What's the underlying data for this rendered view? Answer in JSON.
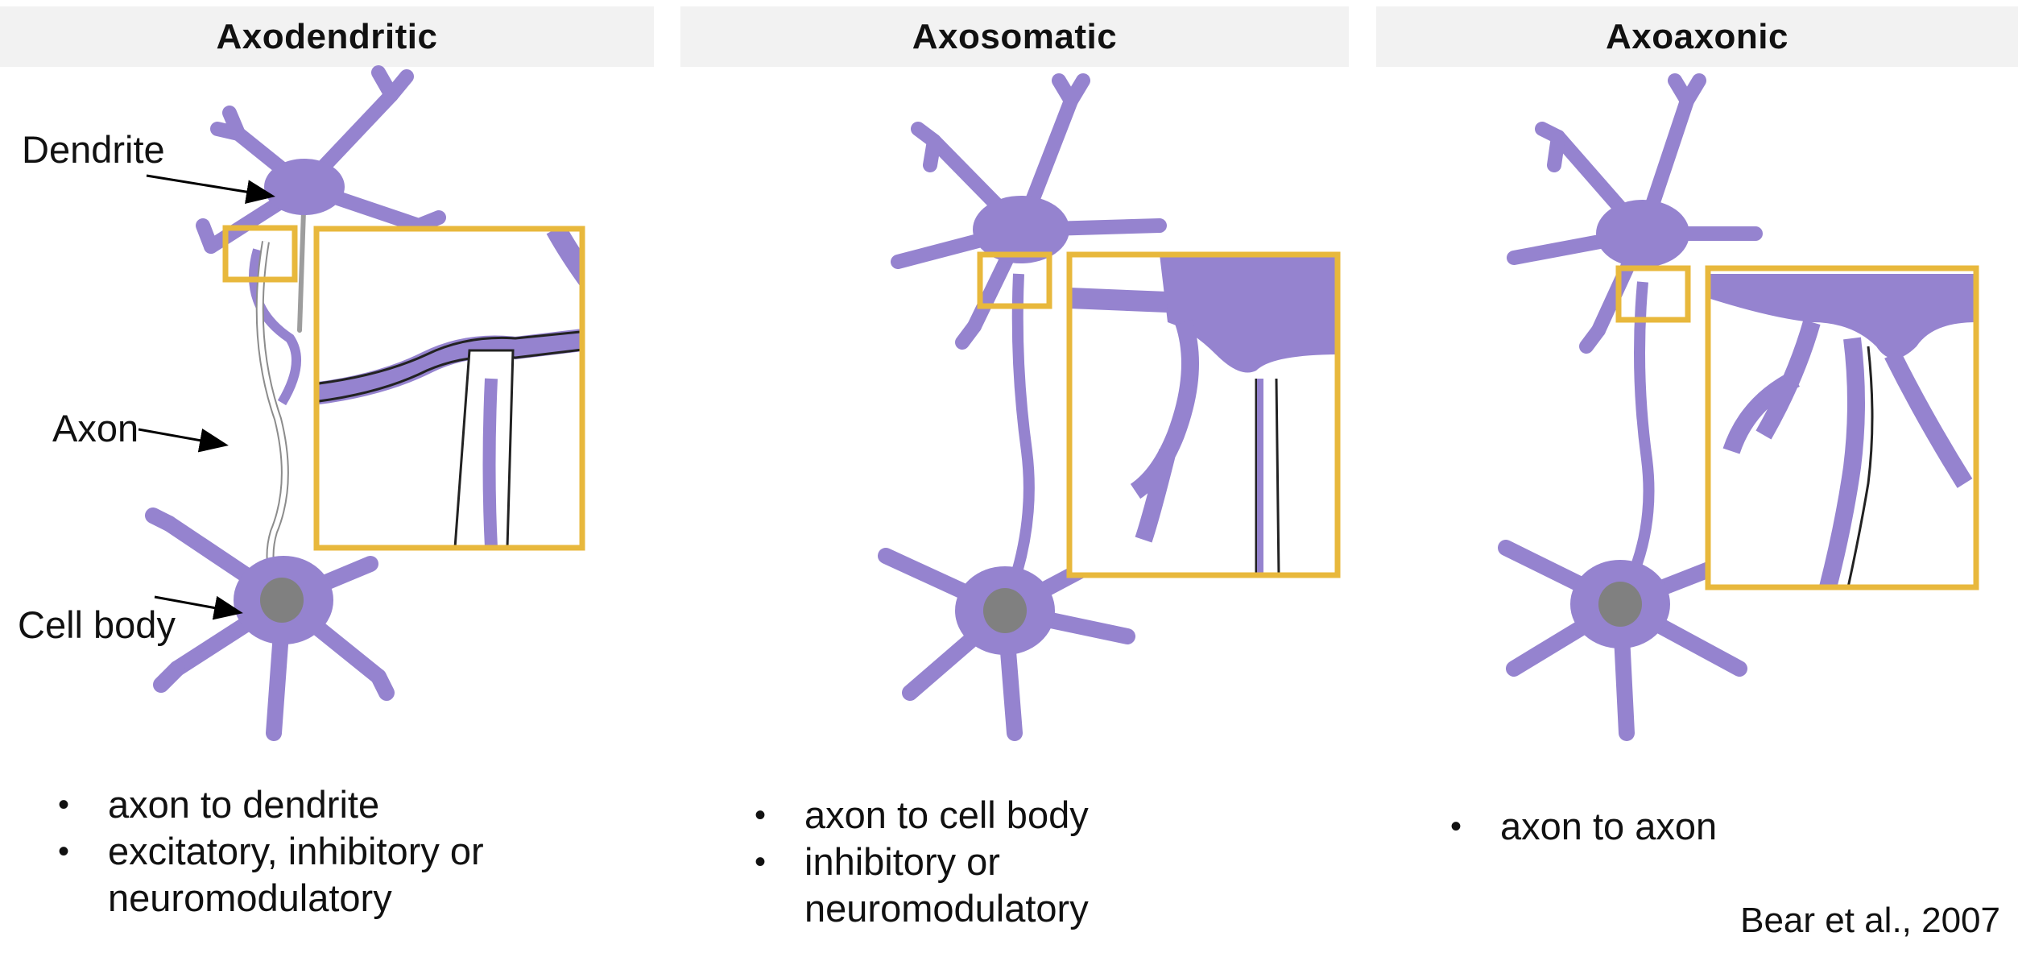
{
  "panels": [
    {
      "title": "Axodendritic",
      "bullets": [
        "axon to dendrite",
        "excitatory, inhibitory or neuromodulatory"
      ]
    },
    {
      "title": "Axosomatic",
      "bullets": [
        "axon to cell body",
        "inhibitory or neuromodulatory"
      ]
    },
    {
      "title": "Axoaxonic",
      "bullets": [
        "axon to axon"
      ]
    }
  ],
  "labels": {
    "dendrite": "Dendrite",
    "axon": "Axon",
    "cell_body": "Cell body"
  },
  "citation": "Bear et al., 2007",
  "colors": {
    "neuron_fill": "#9583cf",
    "nucleus": "#808080",
    "highlight_box": "#e8b83c",
    "header_bg": "#f2f2f2"
  }
}
